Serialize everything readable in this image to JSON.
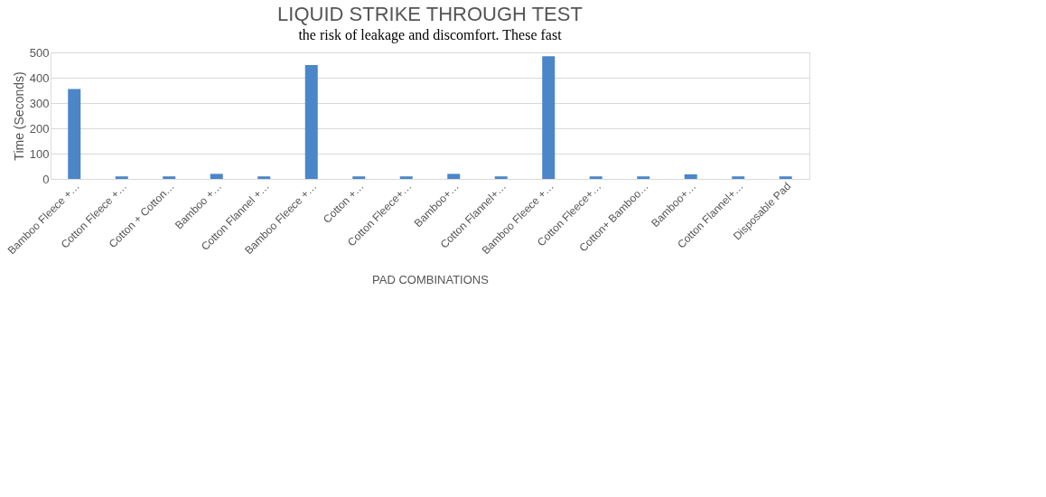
{
  "chart_data": {
    "type": "bar",
    "title": "LIQUID STRIKE THROUGH TEST",
    "xlabel": "PAD COMBINATIONS",
    "ylabel": "Time (Seconds)",
    "categories": [
      "Bamboo Fleece +…",
      "Cotton Fleece +…",
      "Cotton + Cotton…",
      "Bamboo +…",
      "Cotton Flannel +…",
      "Bamboo Fleece +…",
      "Cotton +…",
      "Cotton Fleece+…",
      "Bamboo+…",
      "Cotton Flannel+…",
      "Bamboo Fleece +…",
      "Cotton Fleece+…",
      "Cotton+ Bamboo…",
      "Bamboo+…",
      "Cotton Flannel+…",
      "Disposable Pad"
    ],
    "values": [
      355,
      10,
      10,
      20,
      10,
      450,
      10,
      10,
      20,
      10,
      485,
      10,
      10,
      18,
      10,
      10
    ],
    "color": "#4a86c8",
    "ylim": [
      0,
      500
    ],
    "yticks": [
      0,
      100,
      200,
      300,
      400,
      500
    ],
    "grid": "y",
    "annotations": [
      "the risk of leakage and discomfort. These fast"
    ]
  }
}
